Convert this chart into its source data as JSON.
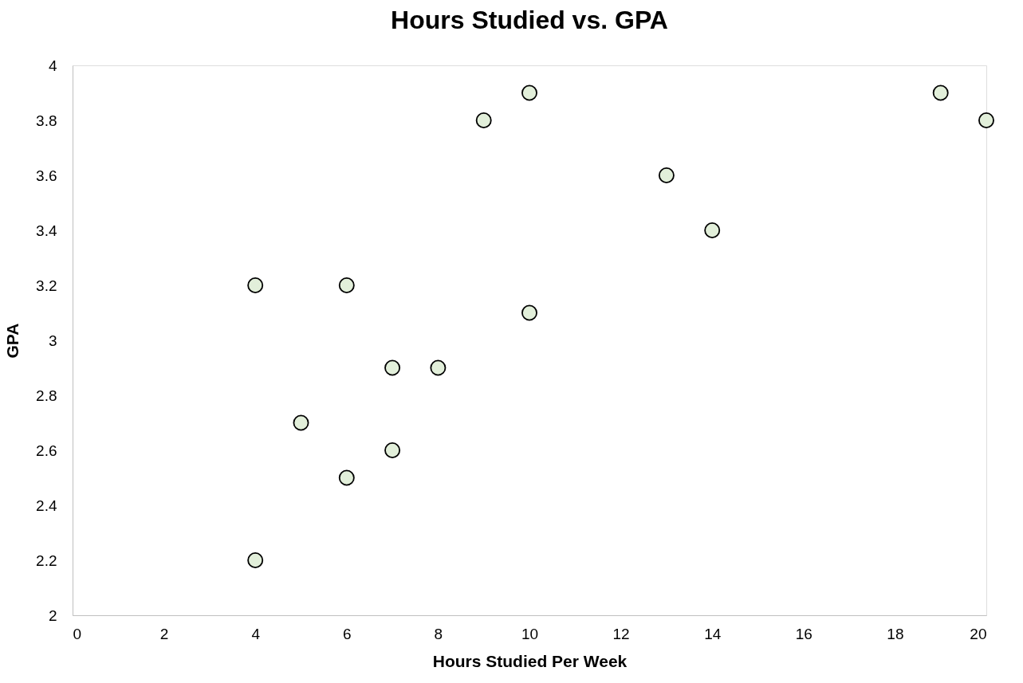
{
  "chart_data": {
    "type": "scatter",
    "title": "Hours Studied vs. GPA",
    "xlabel": "Hours Studied Per Week",
    "ylabel": "GPA",
    "series": [
      {
        "color": "#e2efda",
        "x": [
          4,
          6,
          10,
          7,
          8,
          5,
          7,
          6,
          4,
          9,
          10,
          13,
          14,
          19,
          20
        ],
        "values": [
          3.2,
          3.2,
          3.1,
          2.9,
          2.9,
          2.7,
          2.6,
          2.5,
          2.2,
          3.8,
          3.9,
          3.6,
          3.4,
          3.9,
          3.8
        ]
      }
    ],
    "xlim": [
      0,
      20
    ],
    "xticks": [
      0,
      2,
      4,
      6,
      8,
      10,
      12,
      14,
      16,
      18,
      20
    ],
    "ylim": [
      2,
      4
    ],
    "yticks": [
      {
        "value": 2,
        "label": "2"
      },
      {
        "value": 2.2,
        "label": "2.2"
      },
      {
        "value": 2.4,
        "label": "2.4"
      },
      {
        "value": 2.6,
        "label": "2.6"
      },
      {
        "value": 2.8,
        "label": "2.8"
      },
      {
        "value": 3,
        "label": "3"
      },
      {
        "value": 3.2,
        "label": "3.2"
      },
      {
        "value": 3.4,
        "label": "3.4"
      },
      {
        "value": 3.6,
        "label": "3.6"
      },
      {
        "value": 3.8,
        "label": "3.8"
      },
      {
        "value": 4,
        "label": "4"
      }
    ],
    "grid": false,
    "marker": "circle",
    "legend": false
  }
}
